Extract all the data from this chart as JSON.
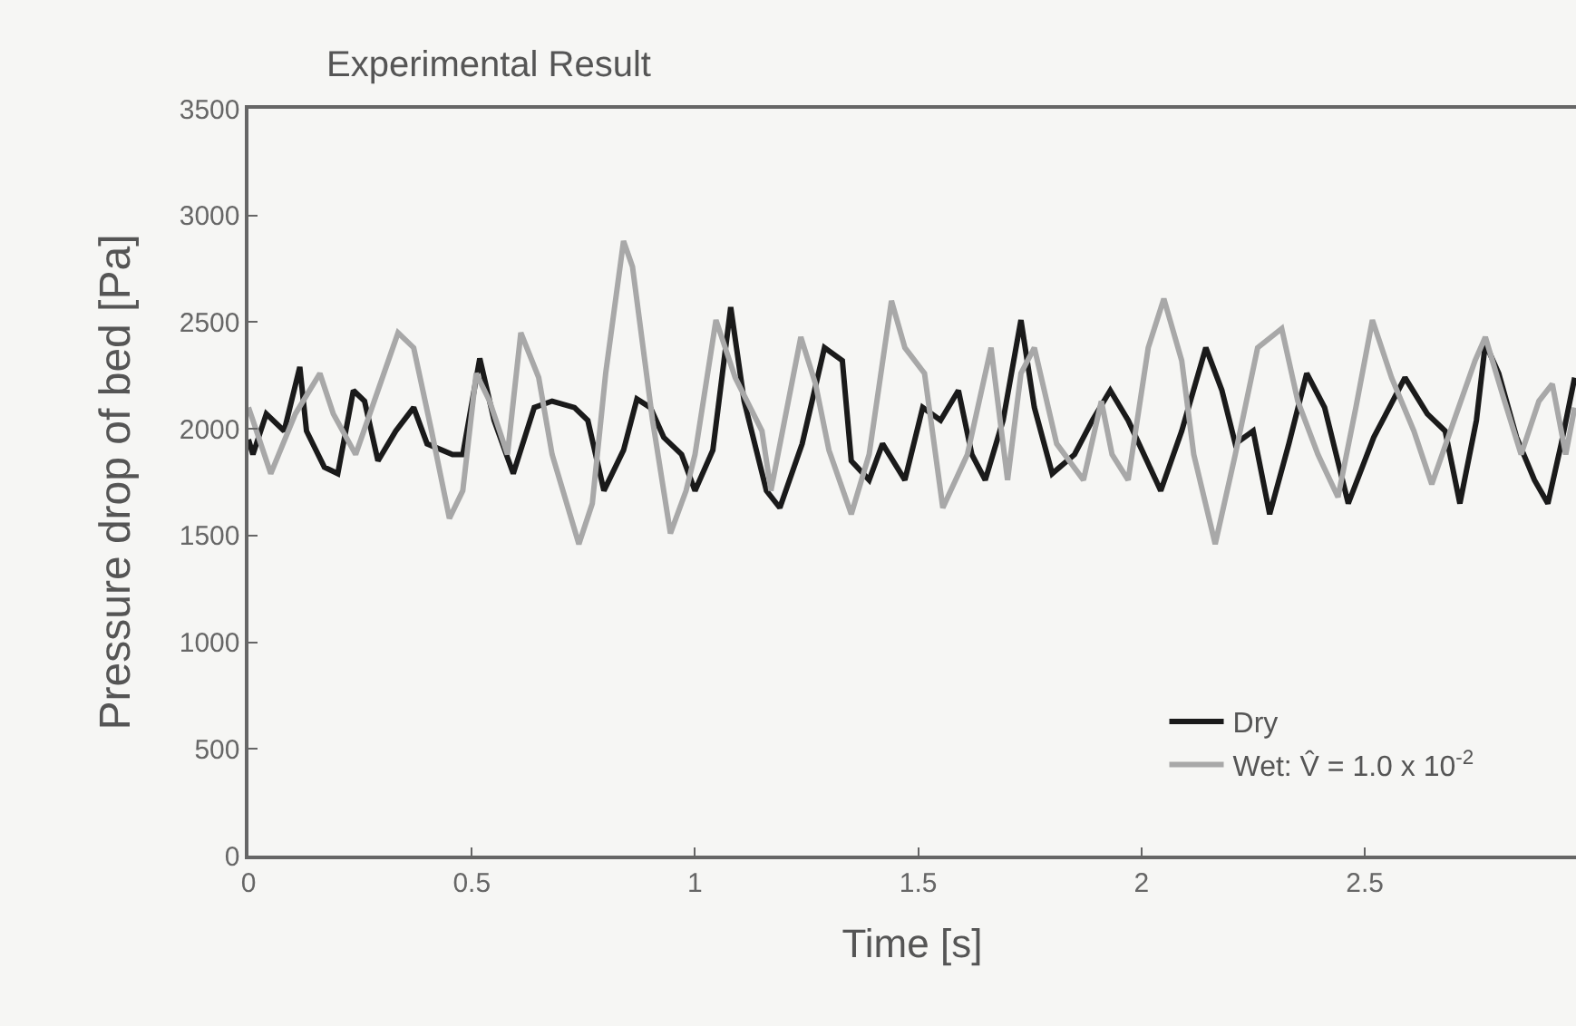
{
  "chart_data": {
    "type": "line",
    "title": "Experimental Result",
    "xlabel": "Time [s]",
    "ylabel": "Pressure drop of bed [Pa]",
    "xlim": [
      0,
      2.973
    ],
    "xticks": [
      0,
      0.5,
      1,
      1.5,
      2,
      2.5
    ],
    "ylim": [
      0,
      3500
    ],
    "yticks": [
      0,
      500,
      1000,
      1500,
      2000,
      2500,
      3000,
      3500
    ],
    "legend": "bottom right",
    "series": [
      {
        "name": "Dry",
        "color": "#1a1a1a",
        "x": [
          0,
          0.01,
          0.04,
          0.08,
          0.115,
          0.13,
          0.17,
          0.2,
          0.235,
          0.26,
          0.29,
          0.33,
          0.37,
          0.4,
          0.457,
          0.48,
          0.518,
          0.55,
          0.593,
          0.64,
          0.68,
          0.73,
          0.76,
          0.796,
          0.84,
          0.87,
          0.9,
          0.93,
          0.97,
          1.0,
          1.04,
          1.08,
          1.11,
          1.16,
          1.19,
          1.24,
          1.29,
          1.33,
          1.35,
          1.39,
          1.42,
          1.47,
          1.51,
          1.55,
          1.59,
          1.62,
          1.65,
          1.69,
          1.73,
          1.76,
          1.8,
          1.85,
          1.89,
          1.93,
          1.97,
          2.043,
          2.09,
          2.144,
          2.18,
          2.21,
          2.25,
          2.287,
          2.33,
          2.37,
          2.41,
          2.463,
          2.52,
          2.59,
          2.64,
          2.68,
          2.713,
          2.75,
          2.77,
          2.8,
          2.84,
          2.88,
          2.91,
          2.94,
          2.97
        ],
        "values": [
          1950,
          1880,
          2070,
          1990,
          2290,
          1990,
          1820,
          1790,
          2180,
          2130,
          1850,
          1990,
          2100,
          1930,
          1880,
          1880,
          2330,
          2040,
          1790,
          2100,
          2130,
          2100,
          2040,
          1710,
          1900,
          2140,
          2100,
          1960,
          1880,
          1710,
          1900,
          2570,
          2130,
          1710,
          1630,
          1930,
          2380,
          2320,
          1850,
          1760,
          1930,
          1760,
          2100,
          2040,
          2180,
          1880,
          1760,
          2040,
          2510,
          2100,
          1790,
          1880,
          2040,
          2180,
          2040,
          1710,
          1990,
          2380,
          2180,
          1930,
          1990,
          1600,
          1930,
          2260,
          2100,
          1650,
          1960,
          2240,
          2070,
          1990,
          1650,
          2040,
          2400,
          2260,
          1960,
          1760,
          1650,
          1930,
          2240
        ]
      },
      {
        "name": "Wet: V̂ = 1.0 x 10$^{-2}$",
        "color": "#a8a8a8",
        "x": [
          0,
          0.01,
          0.05,
          0.105,
          0.16,
          0.19,
          0.24,
          0.335,
          0.37,
          0.41,
          0.45,
          0.48,
          0.51,
          0.54,
          0.58,
          0.61,
          0.65,
          0.68,
          0.74,
          0.77,
          0.8,
          0.84,
          0.86,
          0.905,
          0.945,
          0.98,
          1.0,
          1.047,
          1.09,
          1.15,
          1.17,
          1.237,
          1.27,
          1.3,
          1.35,
          1.39,
          1.44,
          1.47,
          1.514,
          1.555,
          1.61,
          1.663,
          1.7,
          1.73,
          1.76,
          1.81,
          1.87,
          1.91,
          1.934,
          1.97,
          2.015,
          2.05,
          2.09,
          2.117,
          2.165,
          2.21,
          2.26,
          2.314,
          2.35,
          2.395,
          2.44,
          2.48,
          2.517,
          2.56,
          2.61,
          2.65,
          2.7,
          2.747,
          2.77,
          2.81,
          2.85,
          2.89,
          2.92,
          2.95,
          2.97
        ],
        "values": [
          2100,
          2040,
          1790,
          2070,
          2260,
          2070,
          1880,
          2450,
          2380,
          1990,
          1580,
          1710,
          2260,
          2130,
          1880,
          2450,
          2240,
          1880,
          1460,
          1650,
          2260,
          2880,
          2760,
          2040,
          1510,
          1710,
          1880,
          2510,
          2240,
          1990,
          1710,
          2430,
          2210,
          1900,
          1600,
          1880,
          2600,
          2380,
          2260,
          1630,
          1880,
          2380,
          1760,
          2260,
          2380,
          1930,
          1760,
          2130,
          1880,
          1760,
          2380,
          2610,
          2320,
          1880,
          1460,
          1880,
          2380,
          2470,
          2130,
          1880,
          1680,
          2100,
          2510,
          2240,
          1990,
          1740,
          2040,
          2320,
          2430,
          2150,
          1880,
          2130,
          2210,
          1880,
          2100
        ]
      }
    ]
  }
}
